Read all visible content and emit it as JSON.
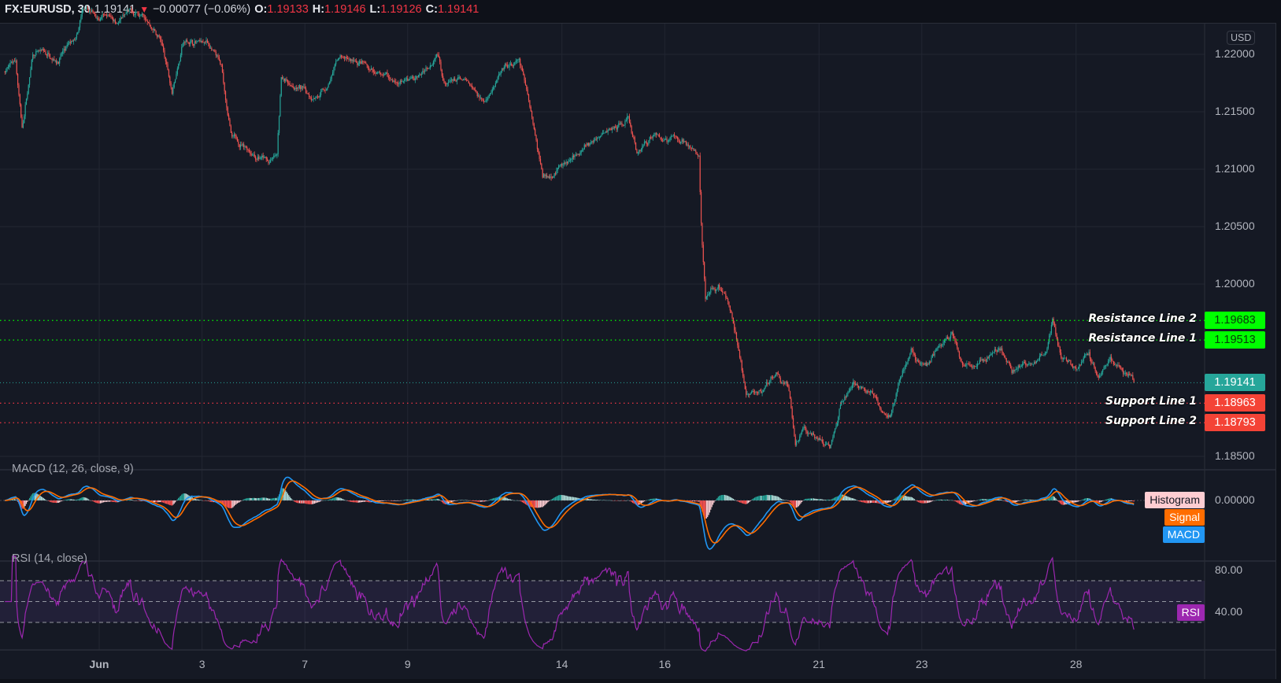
{
  "header": {
    "symbol": "FX:EURUSD, 30",
    "last": "1.19141",
    "direction_icon": "triangle-down-icon",
    "change": "−0.00077 (−0.06%)",
    "o_label": "O:",
    "o": "1.19133",
    "h_label": "H:",
    "h": "1.19146",
    "l_label": "L:",
    "l": "1.19126",
    "c_label": "C:",
    "c": "1.19141"
  },
  "colors": {
    "background": "#151924",
    "grid": "#222632",
    "up": "#26a69a",
    "down": "#ef5350",
    "resistance": "#00ff00",
    "support": "#f23645",
    "last_price": "#26a69a",
    "macd": "#2196f3",
    "signal": "#ff6d00",
    "histogram_label": "#ffcdd2",
    "rsi": "#9c27b0",
    "rsi_band": "#7e57c2"
  },
  "chart_data": {
    "type": "candlestick",
    "title": "FX:EURUSD, 30",
    "currency": "USD",
    "grid": true,
    "price_axis": {
      "ticks": [
        "1.22000",
        "1.21500",
        "1.21000",
        "1.20500",
        "1.20000",
        "1.18500"
      ]
    },
    "time_axis": {
      "ticks": [
        {
          "label": "Jun",
          "date": "06-01"
        },
        {
          "label": "3",
          "date": "06-03"
        },
        {
          "label": "7",
          "date": "06-07"
        },
        {
          "label": "9",
          "date": "06-09"
        },
        {
          "label": "14",
          "date": "06-14"
        },
        {
          "label": "16",
          "date": "06-16"
        },
        {
          "label": "21",
          "date": "06-21"
        },
        {
          "label": "23",
          "date": "06-23"
        },
        {
          "label": "28",
          "date": "06-28"
        }
      ]
    },
    "price_path": [
      [
        "05-28 04:00",
        1.2185
      ],
      [
        "05-28 09:00",
        1.2195
      ],
      [
        "05-28 12:00",
        1.2135
      ],
      [
        "05-28 17:00",
        1.22
      ],
      [
        "05-31 04:00",
        1.2195
      ],
      [
        "05-31 14:00",
        1.2215
      ],
      [
        "05-31 16:00",
        1.2235
      ],
      [
        "06-01 07:00",
        1.223
      ],
      [
        "06-01 20:00",
        1.2235
      ],
      [
        "06-02 04:00",
        1.2215
      ],
      [
        "06-02 10:00",
        1.217
      ],
      [
        "06-02 15:00",
        1.2212
      ],
      [
        "06-03 03:00",
        1.221
      ],
      [
        "06-03 09:00",
        1.2185
      ],
      [
        "06-03 14:00",
        1.2125
      ],
      [
        "06-03 20:00",
        1.212
      ],
      [
        "06-04 07:00",
        1.2105
      ],
      [
        "06-04 11:00",
        1.211
      ],
      [
        "06-04 13:00",
        1.218
      ],
      [
        "06-07 02:00",
        1.2165
      ],
      [
        "06-07 10:00",
        1.217
      ],
      [
        "06-07 16:00",
        1.2195
      ],
      [
        "06-08 01:00",
        1.219
      ],
      [
        "06-08 09:00",
        1.218
      ],
      [
        "06-09 00:00",
        1.2175
      ],
      [
        "06-09 08:00",
        1.2185
      ],
      [
        "06-09 14:00",
        1.2205
      ],
      [
        "06-09 17:00",
        1.218
      ],
      [
        "06-10 03:00",
        1.2175
      ],
      [
        "06-10 12:00",
        1.216
      ],
      [
        "06-10 18:00",
        1.218
      ],
      [
        "06-11 04:00",
        1.219
      ],
      [
        "06-11 09:00",
        1.2155
      ],
      [
        "06-11 15:00",
        1.2095
      ],
      [
        "06-14 01:00",
        1.2105
      ],
      [
        "06-14 12:00",
        1.212
      ],
      [
        "06-15 03:00",
        1.214
      ],
      [
        "06-15 07:00",
        1.2145
      ],
      [
        "06-15 11:00",
        1.2115
      ],
      [
        "06-15 19:00",
        1.213
      ],
      [
        "06-16 08:00",
        1.2125
      ],
      [
        "06-16 16:00",
        1.2115
      ],
      [
        "06-16 17:00",
        1.2055
      ],
      [
        "06-16 19:00",
        1.199
      ],
      [
        "06-17 01:00",
        1.2
      ],
      [
        "06-17 05:00",
        1.1985
      ],
      [
        "06-17 09:00",
        1.1955
      ],
      [
        "06-17 14:00",
        1.19
      ],
      [
        "06-17 20:00",
        1.1905
      ],
      [
        "06-18 04:00",
        1.192
      ],
      [
        "06-18 10:00",
        1.1905
      ],
      [
        "06-18 13:00",
        1.186
      ],
      [
        "06-18 17:00",
        1.1875
      ],
      [
        "06-18 23:00",
        1.1865
      ],
      [
        "06-21 05:00",
        1.1855
      ],
      [
        "06-21 10:00",
        1.1895
      ],
      [
        "06-21 16:00",
        1.191
      ],
      [
        "06-22 02:00",
        1.1905
      ],
      [
        "06-22 09:00",
        1.1885
      ],
      [
        "06-22 13:00",
        1.191
      ],
      [
        "06-22 19:00",
        1.194
      ],
      [
        "06-23 02:00",
        1.1925
      ],
      [
        "06-23 08:00",
        1.1945
      ],
      [
        "06-23 14:00",
        1.196
      ],
      [
        "06-23 19:00",
        1.1925
      ],
      [
        "06-24 03:00",
        1.193
      ],
      [
        "06-24 13:00",
        1.1945
      ],
      [
        "06-24 18:00",
        1.1925
      ],
      [
        "06-25 02:00",
        1.193
      ],
      [
        "06-25 10:00",
        1.194
      ],
      [
        "06-25 13:00",
        1.1968
      ],
      [
        "06-25 17:00",
        1.1935
      ],
      [
        "06-28 01:00",
        1.1925
      ],
      [
        "06-28 06:00",
        1.194
      ],
      [
        "06-28 10:00",
        1.192
      ],
      [
        "06-28 16:00",
        1.1935
      ],
      [
        "06-29 00:00",
        1.192
      ],
      [
        "06-29 03:00",
        1.19141
      ]
    ],
    "last_price": {
      "value": 1.19141,
      "label": "1.19141"
    },
    "levels": [
      {
        "name": "Resistance Line 2",
        "value": 1.19683,
        "label": "1.19683",
        "kind": "resistance"
      },
      {
        "name": "Resistance Line 1",
        "value": 1.19513,
        "label": "1.19513",
        "kind": "resistance"
      },
      {
        "name": "Support Line 1",
        "value": 1.18963,
        "label": "1.18963",
        "kind": "support"
      },
      {
        "name": "Support Line 2",
        "value": 1.18793,
        "label": "1.18793",
        "kind": "support"
      }
    ],
    "macd": {
      "title": "MACD (12, 26, close, 9)",
      "params": [
        12,
        26,
        9
      ],
      "zero_label": "0.00000",
      "legend": {
        "histogram": "Histogram",
        "signal": "Signal",
        "macd": "MACD"
      }
    },
    "rsi": {
      "title": "RSI (14, close)",
      "length": 14,
      "bands": [
        70,
        50,
        30
      ],
      "ticks": [
        {
          "value": 80,
          "label": "80.00"
        },
        {
          "value": 40,
          "label": "40.00"
        }
      ],
      "legend": "RSI"
    }
  }
}
